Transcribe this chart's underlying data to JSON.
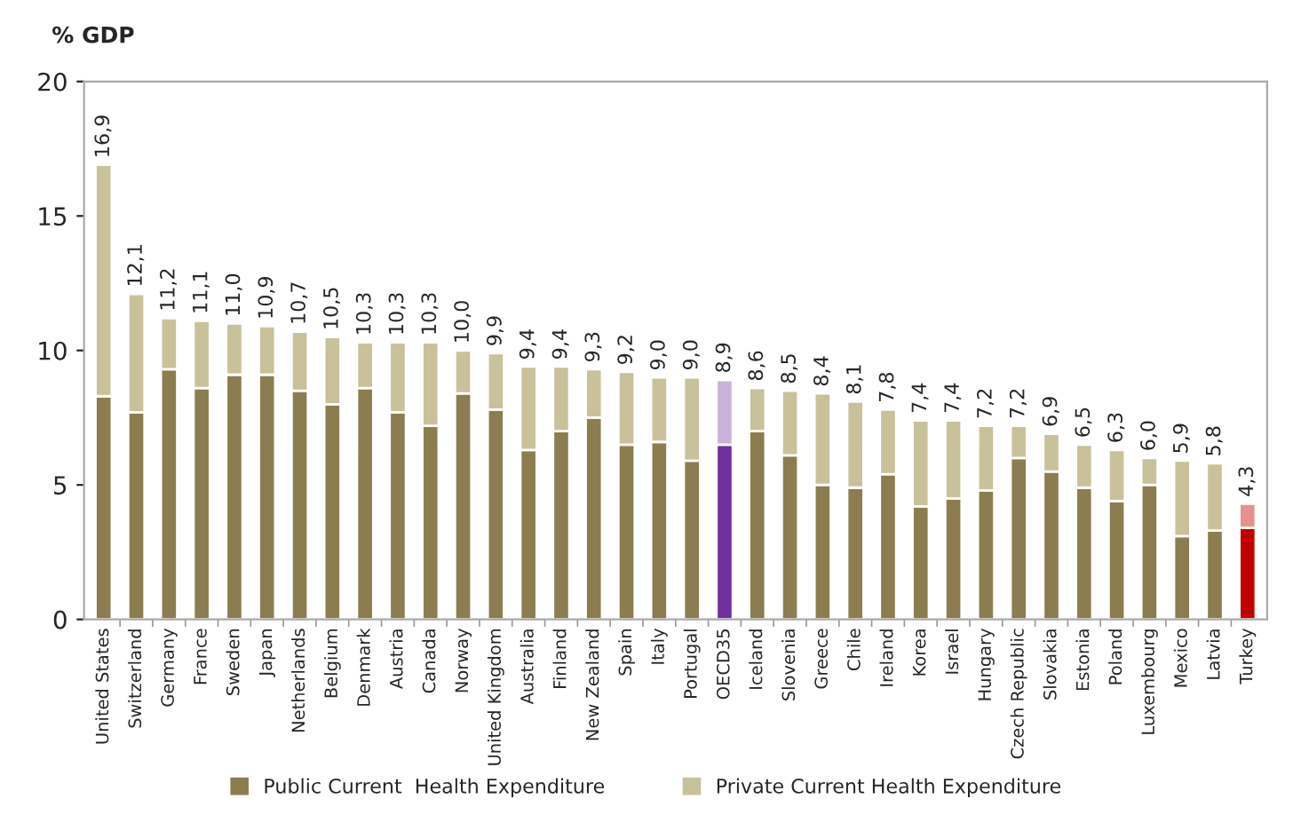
{
  "chart_data": {
    "type": "bar",
    "stacked": true,
    "ylabel": "% GDP",
    "categories": [
      "United States",
      "Switzerland",
      "Germany",
      "France",
      "Sweden",
      "Japan",
      "Netherlands",
      "Belgium",
      "Denmark",
      "Austria",
      "Canada",
      "Norway",
      "United Kingdom",
      "Australia",
      "Finland",
      "New Zealand",
      "Spain",
      "Italy",
      "Portugal",
      "OECD35",
      "Iceland",
      "Slovenia",
      "Greece",
      "Chile",
      "Ireland",
      "Korea",
      "Israel",
      "Hungary",
      "Czech Republic",
      "Slovakia",
      "Estonia",
      "Poland",
      "Luxembourg",
      "Mexico",
      "Latvia",
      "Turkey"
    ],
    "series": [
      {
        "name": "Public Current  Health Expenditure",
        "color": "#8b7d4f",
        "colors": [
          "#8b7d4f",
          "#8b7d4f",
          "#8b7d4f",
          "#8b7d4f",
          "#8b7d4f",
          "#8b7d4f",
          "#8b7d4f",
          "#8b7d4f",
          "#8b7d4f",
          "#8b7d4f",
          "#8b7d4f",
          "#8b7d4f",
          "#8b7d4f",
          "#8b7d4f",
          "#8b7d4f",
          "#8b7d4f",
          "#8b7d4f",
          "#8b7d4f",
          "#8b7d4f",
          "#7030a0",
          "#8b7d4f",
          "#8b7d4f",
          "#8b7d4f",
          "#8b7d4f",
          "#8b7d4f",
          "#8b7d4f",
          "#8b7d4f",
          "#8b7d4f",
          "#8b7d4f",
          "#8b7d4f",
          "#8b7d4f",
          "#8b7d4f",
          "#8b7d4f",
          "#8b7d4f",
          "#8b7d4f",
          "#c00000"
        ],
        "values": [
          8.3,
          7.7,
          9.3,
          8.6,
          9.1,
          9.1,
          8.5,
          8.0,
          8.6,
          7.7,
          7.2,
          8.4,
          7.8,
          6.3,
          7.0,
          7.5,
          6.5,
          6.6,
          5.9,
          6.5,
          7.0,
          6.1,
          5.0,
          4.9,
          5.4,
          4.2,
          4.5,
          4.8,
          6.0,
          5.5,
          4.9,
          4.4,
          5.0,
          3.1,
          3.3,
          3.4
        ]
      },
      {
        "name": "Private Current Health Expenditure",
        "color": "#c9c19a",
        "colors": [
          "#c9c19a",
          "#c9c19a",
          "#c9c19a",
          "#c9c19a",
          "#c9c19a",
          "#c9c19a",
          "#c9c19a",
          "#c9c19a",
          "#c9c19a",
          "#c9c19a",
          "#c9c19a",
          "#c9c19a",
          "#c9c19a",
          "#c9c19a",
          "#c9c19a",
          "#c9c19a",
          "#c9c19a",
          "#c9c19a",
          "#c9c19a",
          "#c9b3d9",
          "#c9c19a",
          "#c9c19a",
          "#c9c19a",
          "#c9c19a",
          "#c9c19a",
          "#c9c19a",
          "#c9c19a",
          "#c9c19a",
          "#c9c19a",
          "#c9c19a",
          "#c9c19a",
          "#c9c19a",
          "#c9c19a",
          "#c9c19a",
          "#c9c19a",
          "#e89090"
        ],
        "values": [
          8.6,
          4.4,
          1.9,
          2.5,
          1.9,
          1.8,
          2.2,
          2.5,
          1.7,
          2.6,
          3.1,
          1.6,
          2.1,
          3.1,
          2.4,
          1.8,
          2.7,
          2.4,
          3.1,
          2.4,
          1.6,
          2.4,
          3.4,
          3.2,
          2.4,
          3.2,
          2.9,
          2.4,
          1.2,
          1.4,
          1.6,
          1.9,
          1.0,
          2.8,
          2.5,
          0.9
        ]
      }
    ],
    "totals": [
      "16,9",
      "12,1",
      "11,2",
      "11,1",
      "11,0",
      "10,9",
      "10,7",
      "10,5",
      "10,3",
      "10,3",
      "10,3",
      "10,0",
      "9,9",
      "9,4",
      "9,4",
      "9,3",
      "9,2",
      "9,0",
      "9,0",
      "8,9",
      "8,6",
      "8,5",
      "8,4",
      "8,1",
      "7,8",
      "7,4",
      "7,4",
      "7,2",
      "7,2",
      "6,9",
      "6,5",
      "6,3",
      "6,0",
      "5,9",
      "5,8",
      "4,3"
    ],
    "ylim": [
      0,
      20
    ],
    "yticks": [
      0,
      5,
      10,
      15,
      20
    ],
    "grid": false,
    "legend": "bottom"
  }
}
